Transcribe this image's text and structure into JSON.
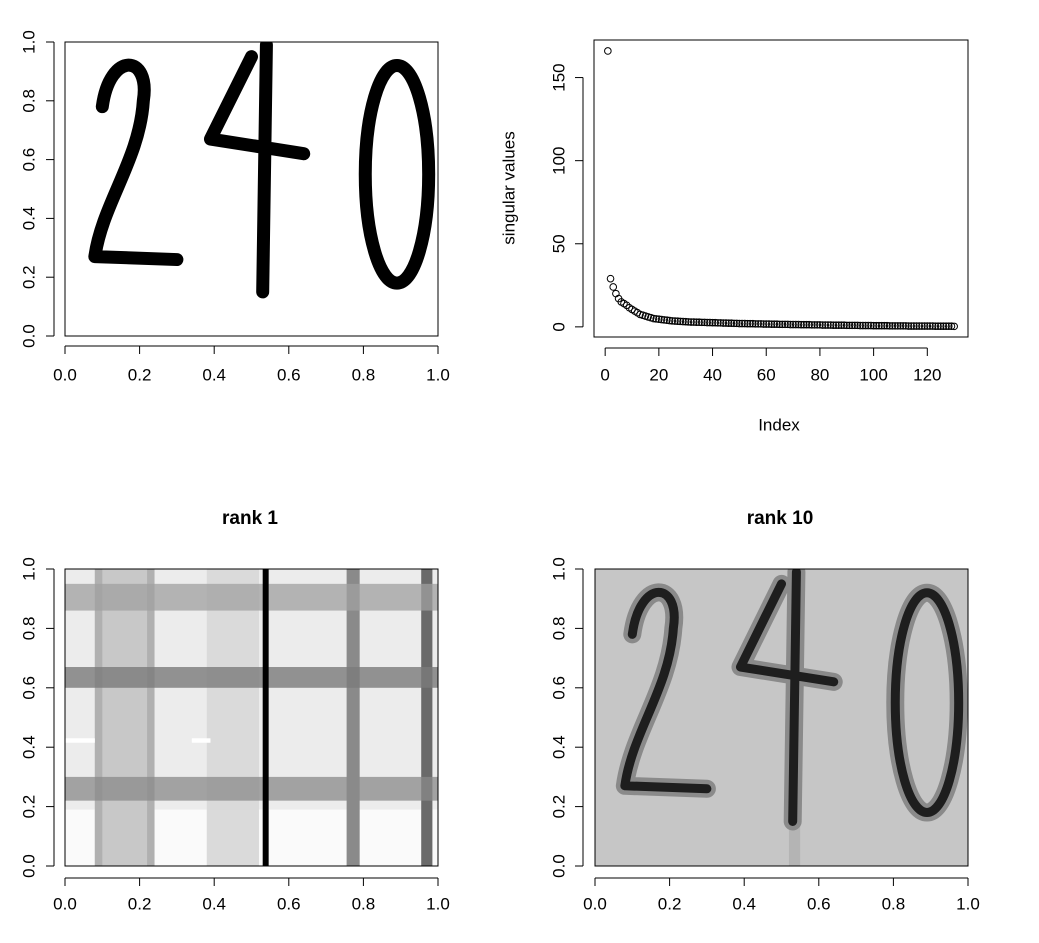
{
  "chart_data": [
    {
      "type": "image",
      "xlim": [
        0,
        1
      ],
      "ylim": [
        0,
        1
      ],
      "xticks": [
        {
          "value": 0,
          "label": "0.0"
        },
        0.2,
        0.4,
        0.6,
        0.8,
        {
          "value": 1,
          "label": "1.0"
        }
      ],
      "yticks": [
        {
          "value": 0,
          "label": "0.0"
        },
        0.2,
        0.4,
        0.6,
        0.8,
        {
          "value": 1,
          "label": "1.0"
        }
      ]
    },
    {
      "type": "scatter",
      "color": "#000000",
      "x_label": "Index",
      "y_label": "singular values",
      "xlim": [
        -4.16,
        135.16
      ],
      "ylim": [
        -6.1,
        172.6
      ],
      "xticks": [
        0,
        20,
        40,
        60,
        80,
        100,
        120
      ],
      "yticks": [
        0,
        50,
        100,
        150
      ],
      "x": [
        1,
        2,
        3,
        4,
        5,
        6,
        7,
        8,
        9,
        10,
        11,
        12,
        13,
        14,
        15,
        16,
        17,
        18,
        19,
        20,
        21,
        22,
        23,
        24,
        25,
        26,
        27,
        28,
        29,
        30,
        31,
        32,
        33,
        34,
        35,
        36,
        37,
        38,
        39,
        40,
        41,
        42,
        43,
        44,
        45,
        46,
        47,
        48,
        49,
        50,
        51,
        52,
        53,
        54,
        55,
        56,
        57,
        58,
        59,
        60,
        61,
        62,
        63,
        64,
        65,
        66,
        67,
        68,
        69,
        70,
        71,
        72,
        73,
        74,
        75,
        76,
        77,
        78,
        79,
        80,
        81,
        82,
        83,
        84,
        85,
        86,
        87,
        88,
        89,
        90,
        91,
        92,
        93,
        94,
        95,
        96,
        97,
        98,
        99,
        100,
        101,
        102,
        103,
        104,
        105,
        106,
        107,
        108,
        109,
        110,
        111,
        112,
        113,
        114,
        115,
        116,
        117,
        118,
        119,
        120,
        121,
        122,
        123,
        124,
        125,
        126,
        127,
        128,
        129,
        130
      ],
      "values": [
        166,
        29,
        24,
        20,
        17,
        15,
        14,
        13,
        11.5,
        10.5,
        9.5,
        8.5,
        7.5,
        7,
        6.5,
        6,
        5.5,
        5,
        4.8,
        4.6,
        4.4,
        4.2,
        4,
        3.8,
        3.6,
        3.5,
        3.4,
        3.3,
        3.2,
        3.1,
        3,
        2.9,
        2.9,
        2.8,
        2.8,
        2.7,
        2.7,
        2.6,
        2.6,
        2.5,
        2.5,
        2.4,
        2.4,
        2.3,
        2.3,
        2.2,
        2.2,
        2.1,
        2.1,
        2,
        2,
        2,
        1.9,
        1.9,
        1.9,
        1.8,
        1.8,
        1.8,
        1.7,
        1.7,
        1.7,
        1.6,
        1.6,
        1.6,
        1.5,
        1.5,
        1.5,
        1.5,
        1.4,
        1.4,
        1.4,
        1.4,
        1.3,
        1.3,
        1.3,
        1.3,
        1.2,
        1.2,
        1.2,
        1.2,
        1.1,
        1.1,
        1.1,
        1.1,
        1,
        1,
        1,
        1,
        1,
        0.9,
        0.9,
        0.9,
        0.9,
        0.9,
        0.8,
        0.8,
        0.8,
        0.8,
        0.8,
        0.7,
        0.7,
        0.7,
        0.7,
        0.7,
        0.7,
        0.6,
        0.6,
        0.6,
        0.6,
        0.6,
        0.6,
        0.6,
        0.5,
        0.5,
        0.5,
        0.5,
        0.5,
        0.5,
        0.5,
        0.5,
        0.5,
        0.5,
        0.4,
        0.4,
        0.4,
        0.4,
        0.4,
        0.4,
        0.4,
        0.3
      ]
    },
    {
      "type": "image",
      "title": "rank 1",
      "xlim": [
        0,
        1
      ],
      "ylim": [
        0,
        1
      ],
      "xticks": [
        {
          "value": 0,
          "label": "0.0"
        },
        0.2,
        0.4,
        0.6,
        0.8,
        {
          "value": 1,
          "label": "1.0"
        }
      ],
      "yticks": [
        {
          "value": 0,
          "label": "0.0"
        },
        0.2,
        0.4,
        0.6,
        0.8,
        {
          "value": 1,
          "label": "1.0"
        }
      ]
    },
    {
      "type": "image",
      "title": "rank 10",
      "xlim": [
        0,
        1
      ],
      "ylim": [
        0,
        1
      ],
      "xticks": [
        {
          "value": 0,
          "label": "0.0"
        },
        0.2,
        0.4,
        0.6,
        0.8,
        {
          "value": 1,
          "label": "1.0"
        }
      ],
      "yticks": [
        {
          "value": 0,
          "label": "0.0"
        },
        0.2,
        0.4,
        0.6,
        0.8,
        {
          "value": 1,
          "label": "1.0"
        }
      ]
    }
  ]
}
